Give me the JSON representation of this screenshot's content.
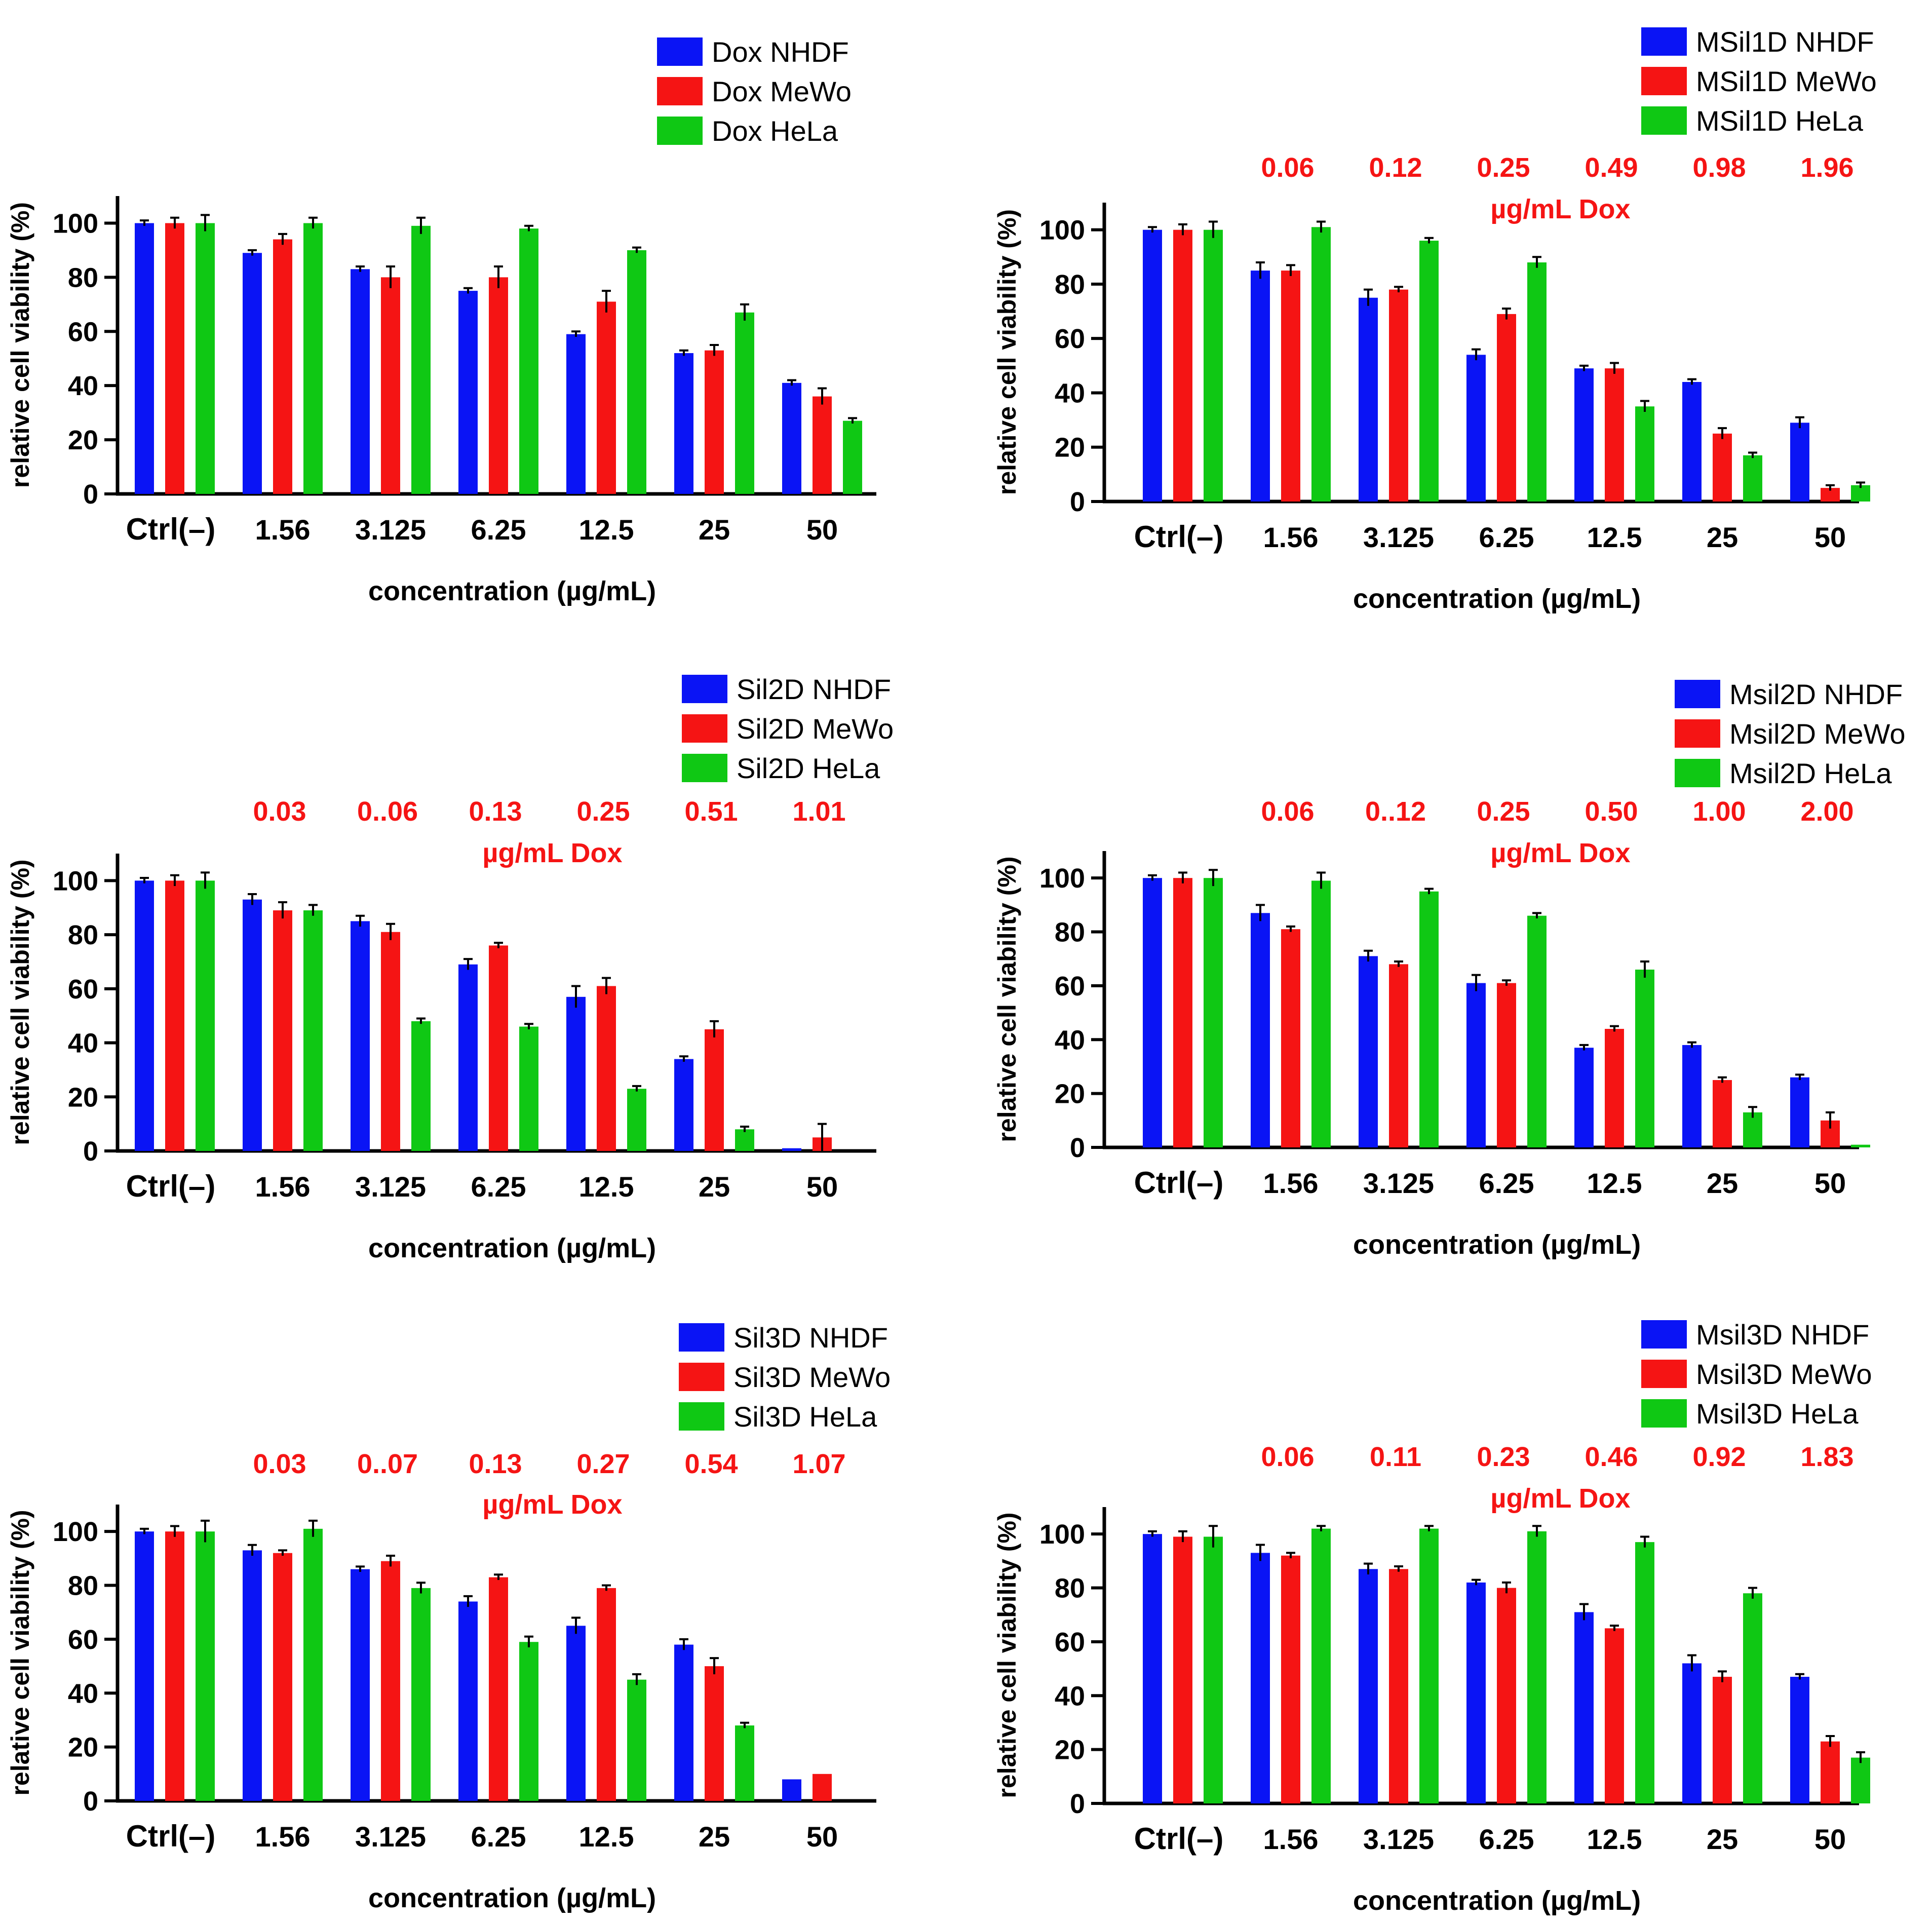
{
  "colors": {
    "NHDF": "#0a14f5",
    "MeWo": "#f51414",
    "HeLa": "#0fc814",
    "axis": "#000000",
    "annotation": "#f51414"
  },
  "chart_data": [
    {
      "type": "bar",
      "categories": [
        "Ctrl(–)",
        "1.56",
        "3.125",
        "6.25",
        "12.5",
        "25",
        "50"
      ],
      "series": [
        {
          "name": "Dox NHDF",
          "cell": "NHDF",
          "values": [
            100,
            89,
            83,
            75,
            59,
            52,
            41
          ],
          "errors": [
            1,
            1,
            1,
            1,
            1,
            1,
            1
          ]
        },
        {
          "name": "Dox MeWo",
          "cell": "MeWo",
          "values": [
            100,
            94,
            80,
            80,
            71,
            53,
            36
          ],
          "errors": [
            2,
            2,
            4,
            4,
            4,
            2,
            3
          ]
        },
        {
          "name": "Dox HeLa",
          "cell": "HeLa",
          "values": [
            100,
            100,
            99,
            98,
            90,
            67,
            27
          ],
          "errors": [
            3,
            2,
            3,
            1,
            1,
            3,
            1
          ]
        }
      ],
      "xlabel": "concentration (µg/mL)",
      "ylabel": "relative cell viability (%)",
      "ylim": [
        0,
        110
      ],
      "yticks": [
        "0",
        "20",
        "40",
        "60",
        "80",
        "100"
      ],
      "dox_values": [],
      "dox_label": ""
    },
    {
      "type": "bar",
      "categories": [
        "Ctrl(–)",
        "1.56",
        "3.125",
        "6.25",
        "12.5",
        "25",
        "50"
      ],
      "series": [
        {
          "name": "MSil1D NHDF",
          "cell": "NHDF",
          "values": [
            100,
            85,
            75,
            54,
            49,
            44,
            29
          ],
          "errors": [
            1,
            3,
            3,
            2,
            1,
            1,
            2
          ]
        },
        {
          "name": "MSil1D MeWo",
          "cell": "MeWo",
          "values": [
            100,
            85,
            78,
            69,
            49,
            25,
            5
          ],
          "errors": [
            2,
            2,
            1,
            2,
            2,
            2,
            1
          ]
        },
        {
          "name": "MSil1D HeLa",
          "cell": "HeLa",
          "values": [
            100,
            101,
            96,
            88,
            35,
            17,
            6
          ],
          "errors": [
            3,
            2,
            1,
            2,
            2,
            1,
            1
          ]
        }
      ],
      "xlabel": "concentration (µg/mL)",
      "ylabel": "relative cell viability (%)",
      "ylim": [
        0,
        110
      ],
      "yticks": [
        "0",
        "20",
        "40",
        "60",
        "80",
        "100"
      ],
      "dox_values": [
        "0.06",
        "0.12",
        "0.25",
        "0.49",
        "0.98",
        "1.96"
      ],
      "dox_label": "µg/mL Dox"
    },
    {
      "type": "bar",
      "categories": [
        "Ctrl(–)",
        "1.56",
        "3.125",
        "6.25",
        "12.5",
        "25",
        "50"
      ],
      "series": [
        {
          "name": "Sil2D NHDF",
          "cell": "NHDF",
          "values": [
            100,
            93,
            85,
            69,
            57,
            34,
            1
          ],
          "errors": [
            1,
            2,
            2,
            2,
            4,
            1,
            0
          ]
        },
        {
          "name": "Sil2D MeWo",
          "cell": "MeWo",
          "values": [
            100,
            89,
            81,
            76,
            61,
            45,
            5
          ],
          "errors": [
            2,
            3,
            3,
            1,
            3,
            3,
            5
          ]
        },
        {
          "name": "Sil2D HeLa",
          "cell": "HeLa",
          "values": [
            100,
            89,
            48,
            46,
            23,
            8,
            0
          ],
          "errors": [
            3,
            2,
            1,
            1,
            1,
            1,
            0
          ]
        }
      ],
      "xlabel": "concentration (µg/mL)",
      "ylabel": "relative cell viability (%)",
      "ylim": [
        0,
        110
      ],
      "yticks": [
        "0",
        "20",
        "40",
        "60",
        "80",
        "100"
      ],
      "dox_values": [
        "0.03",
        "0..06",
        "0.13",
        "0.25",
        "0.51",
        "1.01"
      ],
      "dox_label": "µg/mL Dox"
    },
    {
      "type": "bar",
      "categories": [
        "Ctrl(–)",
        "1.56",
        "3.125",
        "6.25",
        "12.5",
        "25",
        "50"
      ],
      "series": [
        {
          "name": "Msil2D NHDF",
          "cell": "NHDF",
          "values": [
            100,
            87,
            71,
            61,
            37,
            38,
            26
          ],
          "errors": [
            1,
            3,
            2,
            3,
            1,
            1,
            1
          ]
        },
        {
          "name": "Msil2D MeWo",
          "cell": "MeWo",
          "values": [
            100,
            81,
            68,
            61,
            44,
            25,
            10
          ],
          "errors": [
            2,
            1,
            1,
            1,
            1,
            1,
            3
          ]
        },
        {
          "name": "Msil2D HeLa",
          "cell": "HeLa",
          "values": [
            100,
            99,
            95,
            86,
            66,
            13,
            1
          ],
          "errors": [
            3,
            3,
            1,
            1,
            3,
            2,
            0
          ]
        }
      ],
      "xlabel": "concentration (µg/mL)",
      "ylabel": "relative cell viability (%)",
      "ylim": [
        0,
        110
      ],
      "yticks": [
        "0",
        "20",
        "40",
        "60",
        "80",
        "100"
      ],
      "dox_values": [
        "0.06",
        "0..12",
        "0.25",
        "0.50",
        "1.00",
        "2.00"
      ],
      "dox_label": "µg/mL Dox"
    },
    {
      "type": "bar",
      "categories": [
        "Ctrl(–)",
        "1.56",
        "3.125",
        "6.25",
        "12.5",
        "25",
        "50"
      ],
      "series": [
        {
          "name": "Sil3D NHDF",
          "cell": "NHDF",
          "values": [
            100,
            93,
            86,
            74,
            65,
            58,
            8
          ],
          "errors": [
            1,
            2,
            1,
            2,
            3,
            2,
            0
          ]
        },
        {
          "name": "Sil3D MeWo",
          "cell": "MeWo",
          "values": [
            100,
            92,
            89,
            83,
            79,
            50,
            10
          ],
          "errors": [
            2,
            1,
            2,
            1,
            1,
            3,
            0
          ]
        },
        {
          "name": "Sil3D HeLa",
          "cell": "HeLa",
          "values": [
            100,
            101,
            79,
            59,
            45,
            28,
            0
          ],
          "errors": [
            4,
            3,
            2,
            2,
            2,
            1,
            0
          ]
        }
      ],
      "xlabel": "concentration (µg/mL)",
      "ylabel": "relative cell viability (%)",
      "ylim": [
        0,
        110
      ],
      "yticks": [
        "0",
        "20",
        "40",
        "60",
        "80",
        "100"
      ],
      "dox_values": [
        "0.03",
        "0..07",
        "0.13",
        "0.27",
        "0.54",
        "1.07"
      ],
      "dox_label": "µg/mL Dox"
    },
    {
      "type": "bar",
      "categories": [
        "Ctrl(–)",
        "1.56",
        "3.125",
        "6.25",
        "12.5",
        "25",
        "50"
      ],
      "series": [
        {
          "name": "Msil3D NHDF",
          "cell": "NHDF",
          "values": [
            100,
            93,
            87,
            82,
            71,
            52,
            47
          ],
          "errors": [
            1,
            3,
            2,
            1,
            3,
            3,
            1
          ]
        },
        {
          "name": "Msil3D MeWo",
          "cell": "MeWo",
          "values": [
            99,
            92,
            87,
            80,
            65,
            47,
            23
          ],
          "errors": [
            2,
            1,
            1,
            2,
            1,
            2,
            2
          ]
        },
        {
          "name": "Msil3D HeLa",
          "cell": "HeLa",
          "values": [
            99,
            102,
            102,
            101,
            97,
            78,
            17
          ],
          "errors": [
            4,
            1,
            1,
            2,
            2,
            2,
            2
          ]
        }
      ],
      "xlabel": "concentration (µg/mL)",
      "ylabel": "relative cell viability (%)",
      "ylim": [
        0,
        110
      ],
      "yticks": [
        "0",
        "20",
        "40",
        "60",
        "80",
        "100"
      ],
      "dox_values": [
        "0.06",
        "0.11",
        "0.23",
        "0.46",
        "0.92",
        "1.83"
      ],
      "dox_label": "µg/mL Dox"
    }
  ]
}
